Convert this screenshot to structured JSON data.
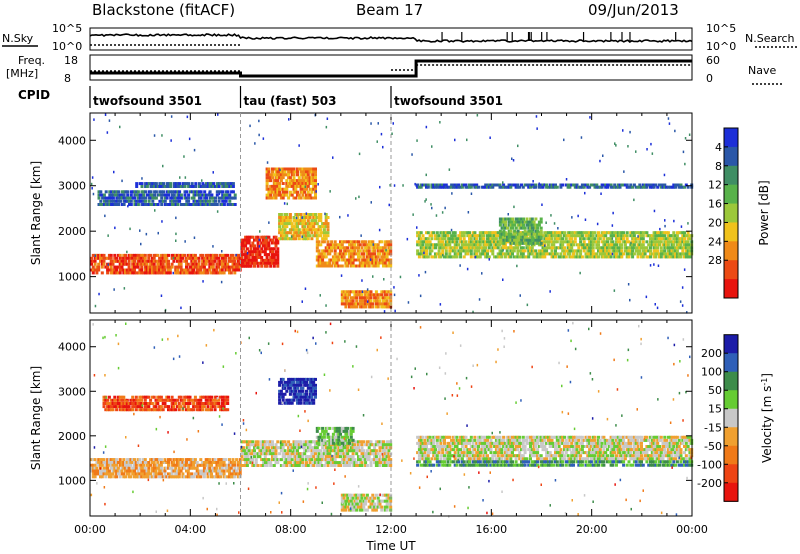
{
  "header": {
    "station": "Blackstone (fitACF)",
    "beam": "Beam 17",
    "date": "09/Jun/2013"
  },
  "side_labels": {
    "nsky": "N.Sky",
    "nsearch": "N.Search",
    "freq_line1": "Freq.",
    "freq_line2": "[MHz]",
    "nave": "Nave",
    "cpid": "CPID"
  },
  "noise_axis": {
    "left_ticks": [
      "10^5",
      "10^0"
    ],
    "right_ticks": [
      "10^5",
      "10^0"
    ]
  },
  "freq_axis": {
    "left_ticks": [
      "18",
      "8"
    ],
    "right_ticks": [
      "60",
      "0"
    ]
  },
  "cpid_segments": [
    {
      "label": "twofsound 3501",
      "start_hour": 0,
      "end_hour": 6
    },
    {
      "label": "tau (fast) 503",
      "start_hour": 6,
      "end_hour": 12
    },
    {
      "label": "twofsound 3501",
      "start_hour": 12,
      "end_hour": 24
    }
  ],
  "chart_data": [
    {
      "type": "heatmap",
      "name": "power",
      "ylabel": "Slant Range [km]",
      "ylim": [
        200,
        4600
      ],
      "xlim": [
        0,
        24
      ],
      "yticks": [
        1000,
        2000,
        3000,
        4000
      ],
      "colorbar": {
        "label": "Power [dB]",
        "tick_labels": [
          "4",
          "8",
          "12",
          "16",
          "20",
          "24",
          "28"
        ],
        "colors": [
          "#1c2fd8",
          "#2a57a8",
          "#3f8e64",
          "#58b24a",
          "#9cc83a",
          "#f0c21c",
          "#f08a18",
          "#ec4a14",
          "#e8140e"
        ]
      },
      "bands": [
        {
          "start": 0.0,
          "end": 6.0,
          "y1": 1050,
          "y2": 1500,
          "level": 7
        },
        {
          "start": 0.3,
          "end": 5.8,
          "y1": 2550,
          "y2": 2900,
          "level": 1
        },
        {
          "start": 1.8,
          "end": 5.8,
          "y1": 2950,
          "y2": 3080,
          "level": 1
        },
        {
          "start": 6.0,
          "end": 7.5,
          "y1": 1200,
          "y2": 1900,
          "level": 8
        },
        {
          "start": 7.5,
          "end": 9.5,
          "y1": 1800,
          "y2": 2400,
          "level": 5
        },
        {
          "start": 9.0,
          "end": 12.0,
          "y1": 1200,
          "y2": 1800,
          "level": 6
        },
        {
          "start": 10.0,
          "end": 12.0,
          "y1": 300,
          "y2": 700,
          "level": 6
        },
        {
          "start": 7.0,
          "end": 9.0,
          "y1": 2700,
          "y2": 3400,
          "level": 6
        },
        {
          "start": 13.0,
          "end": 24.0,
          "y1": 1400,
          "y2": 2000,
          "level": 4
        },
        {
          "start": 16.3,
          "end": 18.0,
          "y1": 1700,
          "y2": 2300,
          "level": 3
        },
        {
          "start": 13.0,
          "end": 24.0,
          "y1": 2950,
          "y2": 3050,
          "level": 1
        }
      ]
    },
    {
      "type": "heatmap",
      "name": "velocity",
      "xlabel": "Time UT",
      "ylabel": "Slant Range [km]",
      "ylim": [
        200,
        4600
      ],
      "xlim": [
        0,
        24
      ],
      "yticks": [
        1000,
        2000,
        3000,
        4000
      ],
      "xticks": [
        "00:00",
        "04:00",
        "08:00",
        "12:00",
        "16:00",
        "20:00",
        "00:00"
      ],
      "colorbar": {
        "label": "Velocity [m s^-1]",
        "tick_labels": [
          "200",
          "100",
          "50",
          "15",
          "-15",
          "-50",
          "-100",
          "-200"
        ],
        "colors": [
          "#1c1ca8",
          "#2f5fb8",
          "#3d8c4a",
          "#66cc33",
          "#c8c8c8",
          "#f0a030",
          "#f07a18",
          "#ee4414",
          "#e8140e"
        ]
      },
      "bands": [
        {
          "start": 0.0,
          "end": 6.0,
          "y1": 1050,
          "y2": 1500,
          "level": 5
        },
        {
          "start": 0.5,
          "end": 5.5,
          "y1": 2550,
          "y2": 2900,
          "level": 7
        },
        {
          "start": 6.0,
          "end": 12.0,
          "y1": 1300,
          "y2": 1900,
          "level": 4
        },
        {
          "start": 7.5,
          "end": 9.0,
          "y1": 2700,
          "y2": 3300,
          "level": 0
        },
        {
          "start": 9.0,
          "end": 10.5,
          "y1": 1800,
          "y2": 2200,
          "level": 3
        },
        {
          "start": 10.0,
          "end": 12.0,
          "y1": 300,
          "y2": 700,
          "level": 4
        },
        {
          "start": 13.0,
          "end": 24.0,
          "y1": 1450,
          "y2": 2000,
          "level": 4
        },
        {
          "start": 13.0,
          "end": 24.0,
          "y1": 1300,
          "y2": 1450,
          "level": 2
        }
      ]
    }
  ]
}
